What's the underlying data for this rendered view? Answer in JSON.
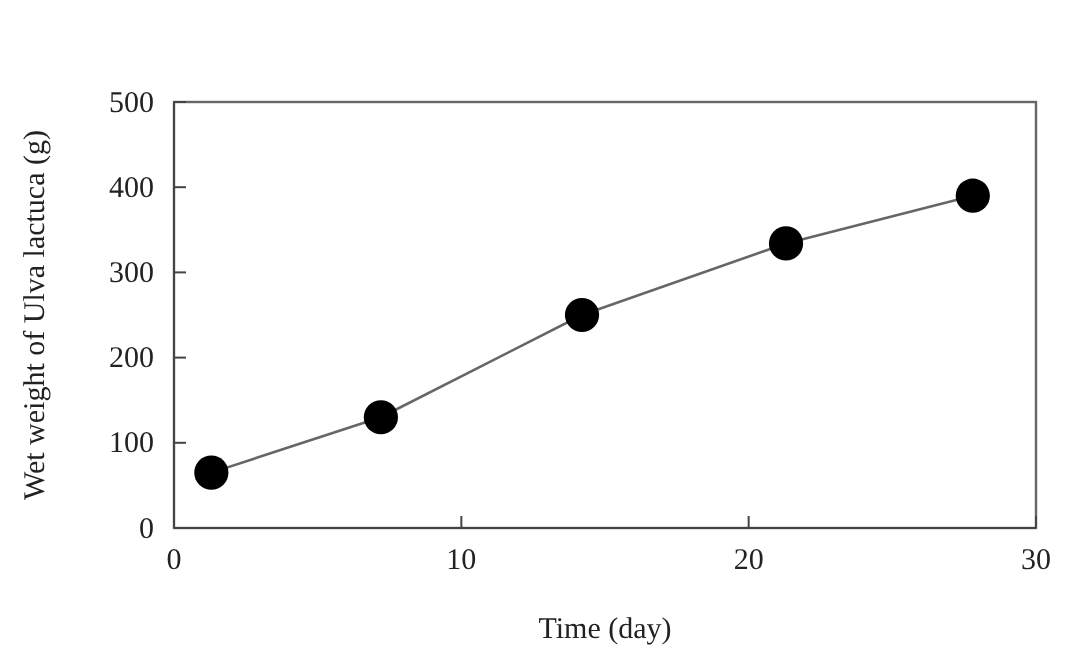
{
  "chart_data": {
    "type": "line",
    "xlabel": "Time  (day)",
    "ylabel": "Wet weight of  Ulva lactuca  (g)",
    "x": [
      1.3,
      7.2,
      14.2,
      21.3,
      27.8
    ],
    "series": [
      {
        "color": "#000000",
        "values": [
          65,
          130,
          250,
          334,
          390
        ]
      }
    ],
    "xlim": [
      0,
      30
    ],
    "xticks": [
      0,
      10,
      20,
      30
    ],
    "ylim": [
      0,
      500
    ],
    "yticks": [
      0,
      100,
      200,
      300,
      400,
      500
    ],
    "marker": "circle",
    "line_style": "solid"
  }
}
